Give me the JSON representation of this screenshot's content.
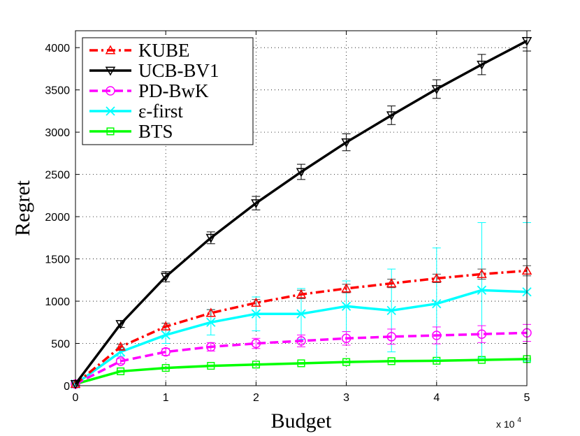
{
  "chart_data": {
    "type": "line",
    "xlabel": "Budget",
    "ylabel": "Regret",
    "x_multiplier_label": "x 10",
    "x_multiplier_exp": "4",
    "xlim": [
      0,
      5
    ],
    "ylim": [
      0,
      4200
    ],
    "xticks": [
      "0",
      "1",
      "2",
      "3",
      "4",
      "5"
    ],
    "yticks": [
      "0",
      "500",
      "1000",
      "1500",
      "2000",
      "2500",
      "3000",
      "3500",
      "4000"
    ],
    "grid": true,
    "legend_position": "top-left",
    "x": [
      0,
      0.5,
      1,
      1.5,
      2,
      2.5,
      3,
      3.5,
      4,
      4.5,
      5
    ],
    "series": [
      {
        "name": "KUBE",
        "color": "#ff0000",
        "dash": "dashdot",
        "marker": "triangle-up",
        "values": [
          20,
          460,
          700,
          860,
          980,
          1080,
          1150,
          1210,
          1270,
          1320,
          1360
        ],
        "errors": [
          0,
          30,
          40,
          40,
          40,
          50,
          50,
          50,
          50,
          60,
          60
        ]
      },
      {
        "name": "UCB-BV1",
        "color": "#000000",
        "dash": "solid",
        "marker": "triangle-down",
        "values": [
          20,
          730,
          1290,
          1750,
          2160,
          2530,
          2880,
          3200,
          3510,
          3800,
          4080
        ],
        "errors": [
          0,
          40,
          60,
          70,
          80,
          90,
          100,
          110,
          110,
          120,
          120
        ]
      },
      {
        "name": "PD-BwK",
        "color": "#ff00ff",
        "dash": "dashed",
        "marker": "circle",
        "values": [
          20,
          290,
          400,
          460,
          500,
          530,
          560,
          580,
          595,
          610,
          625
        ],
        "errors": [
          0,
          30,
          40,
          50,
          60,
          70,
          80,
          90,
          100,
          100,
          100
        ]
      },
      {
        "name": "ε-first",
        "color": "#00ffff",
        "dash": "solid",
        "marker": "x",
        "values": [
          20,
          400,
          600,
          750,
          850,
          850,
          940,
          890,
          970,
          1130,
          1110
        ],
        "errors": [
          0,
          50,
          100,
          150,
          200,
          300,
          300,
          490,
          660,
          800,
          820
        ]
      },
      {
        "name": "BTS",
        "color": "#00ff00",
        "dash": "solid",
        "marker": "square",
        "values": [
          20,
          170,
          210,
          235,
          250,
          265,
          280,
          290,
          295,
          305,
          315
        ],
        "errors": [
          0,
          10,
          10,
          10,
          10,
          10,
          10,
          10,
          10,
          10,
          10
        ]
      }
    ]
  }
}
